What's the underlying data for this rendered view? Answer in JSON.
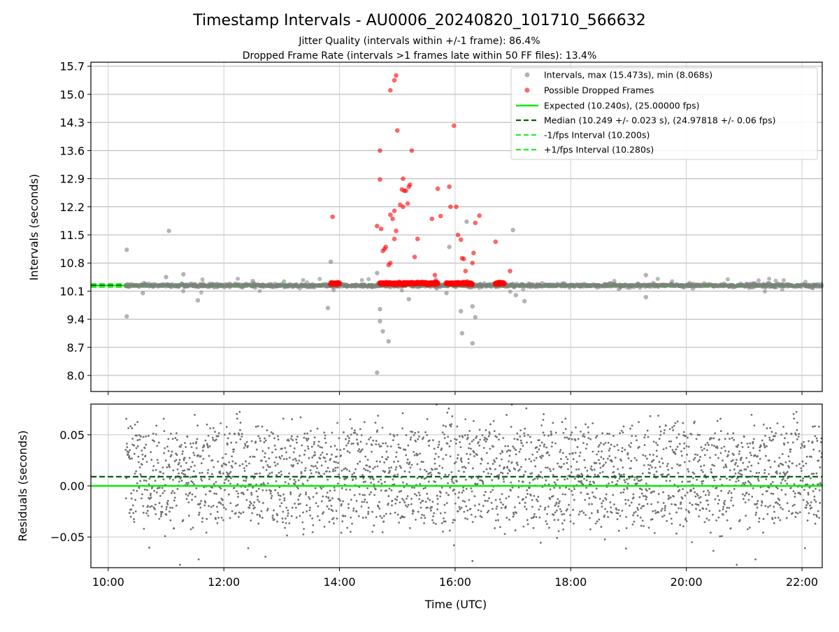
{
  "chart_data": [
    {
      "type": "scatter",
      "title": "Timestamp Intervals - AU0006_20240820_101710_566632",
      "subtitle_lines": [
        "Jitter Quality (intervals within +/-1 frame): 86.4%",
        "Dropped Frame Rate (intervals >1 frames late within 50 FF files): 13.4%"
      ],
      "xlabel": "",
      "ylabel": "Intervals (seconds)",
      "x_unit": "hours UTC",
      "xlim": [
        9.7,
        22.35
      ],
      "ylim": [
        7.6,
        15.8
      ],
      "yticks": [
        8.0,
        8.7,
        9.4,
        10.1,
        10.8,
        11.5,
        12.2,
        12.9,
        13.6,
        14.3,
        15.0,
        15.7
      ],
      "ytick_labels": [
        "8.0",
        "8.7",
        "9.4",
        "10.1",
        "10.8",
        "11.5",
        "12.2",
        "12.9",
        "13.6",
        "14.3",
        "15.0",
        "15.7"
      ],
      "xticks": [
        10,
        12,
        14,
        16,
        18,
        20,
        22
      ],
      "grid": true,
      "legend_position": "top-right",
      "legend": [
        "Intervals, max (15.473s), min (8.068s)",
        "Possible Dropped Frames",
        "Expected (10.240s), (25.00000 fps)",
        "Median (10.249 +/- 0.023 s), (24.97818 +/- 0.06 fps)",
        "-1/fps Interval (10.200s)",
        "+1/fps Interval (10.280s)"
      ],
      "reference_lines": {
        "expected": 10.24,
        "median": 10.249,
        "minus_1fps": 10.2,
        "plus_1fps": 10.28
      },
      "colors": {
        "intervals": "#808080",
        "dropped": "#ff0000",
        "expected": "#00ee00",
        "median": "#006400",
        "interval_bounds": "#22ee22"
      },
      "series": [
        {
          "name": "Intervals, max (15.473s), min (8.068s)",
          "baseline_range": [
            10.3,
            22.35
          ],
          "baseline_value": 10.24,
          "outliers": [
            [
              10.32,
              11.13
            ],
            [
              10.32,
              9.47
            ],
            [
              11.05,
              11.6
            ],
            [
              11.3,
              10.52
            ],
            [
              11.55,
              9.87
            ],
            [
              13.8,
              9.68
            ],
            [
              13.85,
              10.83
            ],
            [
              14.65,
              8.07
            ],
            [
              14.7,
              9.35
            ],
            [
              14.75,
              9.1
            ],
            [
              14.85,
              8.85
            ],
            [
              14.65,
              10.55
            ],
            [
              14.7,
              9.65
            ],
            [
              15.2,
              9.9
            ],
            [
              15.85,
              10.05
            ],
            [
              15.9,
              11.2
            ],
            [
              16.1,
              9.6
            ],
            [
              16.12,
              9.05
            ],
            [
              16.2,
              11.83
            ],
            [
              16.3,
              8.8
            ],
            [
              16.35,
              9.45
            ],
            [
              16.3,
              9.72
            ],
            [
              17.0,
              11.62
            ],
            [
              17.05,
              10.0
            ],
            [
              17.2,
              9.85
            ],
            [
              19.3,
              10.5
            ],
            [
              19.3,
              9.95
            ],
            [
              10.6,
              10.05
            ],
            [
              11.0,
              10.45
            ],
            [
              12.5,
              10.35
            ]
          ]
        },
        {
          "name": "Possible Dropped Frames",
          "baseline_clusters": [
            [
              13.85,
              14.0
            ],
            [
              14.7,
              15.7
            ],
            [
              15.85,
              16.3
            ],
            [
              16.7,
              16.85
            ]
          ],
          "points": [
            [
              13.88,
              11.95
            ],
            [
              14.65,
              11.72
            ],
            [
              14.7,
              13.6
            ],
            [
              14.7,
              12.88
            ],
            [
              14.72,
              11.65
            ],
            [
              14.75,
              11.1
            ],
            [
              14.78,
              11.15
            ],
            [
              14.8,
              11.2
            ],
            [
              14.85,
              10.75
            ],
            [
              14.88,
              10.8
            ],
            [
              14.88,
              12.0
            ],
            [
              14.92,
              11.9
            ],
            [
              14.95,
              11.4
            ],
            [
              14.95,
              12.1
            ],
            [
              14.98,
              11.6
            ],
            [
              15.0,
              14.1
            ],
            [
              15.05,
              12.25
            ],
            [
              15.1,
              12.2
            ],
            [
              15.12,
              12.6
            ],
            [
              15.15,
              12.6
            ],
            [
              15.18,
              12.28
            ],
            [
              15.2,
              12.7
            ],
            [
              15.22,
              12.75
            ],
            [
              15.25,
              13.6
            ],
            [
              15.3,
              10.95
            ],
            [
              15.35,
              11.4
            ],
            [
              15.08,
              12.63
            ],
            [
              15.1,
              12.9
            ],
            [
              14.88,
              15.1
            ],
            [
              14.95,
              15.35
            ],
            [
              14.98,
              15.47
            ],
            [
              15.6,
              11.9
            ],
            [
              15.7,
              12.65
            ],
            [
              15.75,
              11.97
            ],
            [
              15.9,
              12.7
            ],
            [
              15.92,
              12.2
            ],
            [
              15.98,
              14.22
            ],
            [
              16.02,
              12.2
            ],
            [
              16.05,
              11.5
            ],
            [
              16.1,
              11.38
            ],
            [
              16.12,
              10.92
            ],
            [
              16.15,
              10.9
            ],
            [
              16.18,
              10.6
            ],
            [
              16.3,
              10.8
            ],
            [
              16.32,
              11.05
            ],
            [
              16.35,
              11.8
            ],
            [
              16.42,
              11.98
            ],
            [
              16.7,
              11.33
            ],
            [
              16.95,
              10.6
            ],
            [
              15.65,
              10.5
            ]
          ]
        }
      ]
    },
    {
      "type": "scatter",
      "title": "",
      "xlabel": "Time (UTC)",
      "ylabel": "Residuals (seconds)",
      "x_unit": "hours UTC",
      "xlim": [
        9.7,
        22.35
      ],
      "ylim": [
        -0.08,
        0.08
      ],
      "yticks": [
        -0.05,
        0.0,
        0.05
      ],
      "ytick_labels": [
        "−0.05",
        "0.00",
        "0.05"
      ],
      "xticks": [
        10,
        12,
        14,
        16,
        18,
        20,
        22
      ],
      "xtick_labels": [
        "10:00",
        "12:00",
        "14:00",
        "16:00",
        "18:00",
        "20:00",
        "22:00"
      ],
      "grid": true,
      "reference_lines": {
        "expected_residual": 0.0,
        "median_residual": 0.009
      },
      "colors": {
        "points": "#707070",
        "expected": "#00ee00",
        "median": "#006400"
      },
      "series": [
        {
          "name": "Residuals",
          "x_range": [
            10.3,
            22.35
          ],
          "approx_count": 2600,
          "typical_spread": 0.025,
          "value_range": [
            -0.08,
            0.08
          ]
        }
      ]
    }
  ]
}
